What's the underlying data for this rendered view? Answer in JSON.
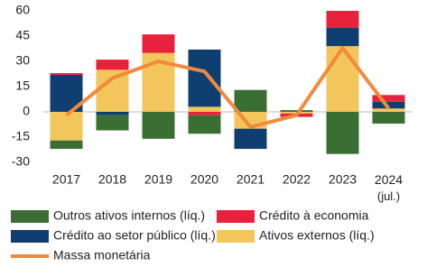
{
  "chart_data": {
    "type": "stacked-bar-line",
    "categories": [
      "2017",
      "2018",
      "2019",
      "2020",
      "2021",
      "2022",
      "2023",
      "2024 (jul.)"
    ],
    "series": [
      {
        "name": "Outros ativos internos (líq.)",
        "color": "#3b6e33",
        "values": [
          -5,
          -9,
          -16,
          -11,
          13,
          1,
          -25,
          -7
        ]
      },
      {
        "name": "Crédito à economia",
        "color": "#e8213c",
        "values": [
          1,
          6,
          11,
          -2,
          0,
          -2,
          10,
          4
        ]
      },
      {
        "name": "Crédito ao setor público (líq.)",
        "color": "#0f3f70",
        "values": [
          22,
          -2,
          0,
          34,
          -12,
          0,
          11,
          4
        ]
      },
      {
        "name": "Ativos externos (líq.)",
        "color": "#f3c65c",
        "values": [
          -17,
          25,
          35,
          3,
          -10,
          -1,
          39,
          2
        ]
      },
      {
        "name": "Massa monetária",
        "color": "#f08a3c",
        "type": "line",
        "values": [
          -2,
          20,
          30,
          24,
          -9,
          -2,
          38,
          2
        ]
      }
    ],
    "ylim": [
      -30,
      60
    ],
    "yticks": [
      -30,
      -15,
      0,
      15,
      30,
      45,
      60
    ]
  }
}
